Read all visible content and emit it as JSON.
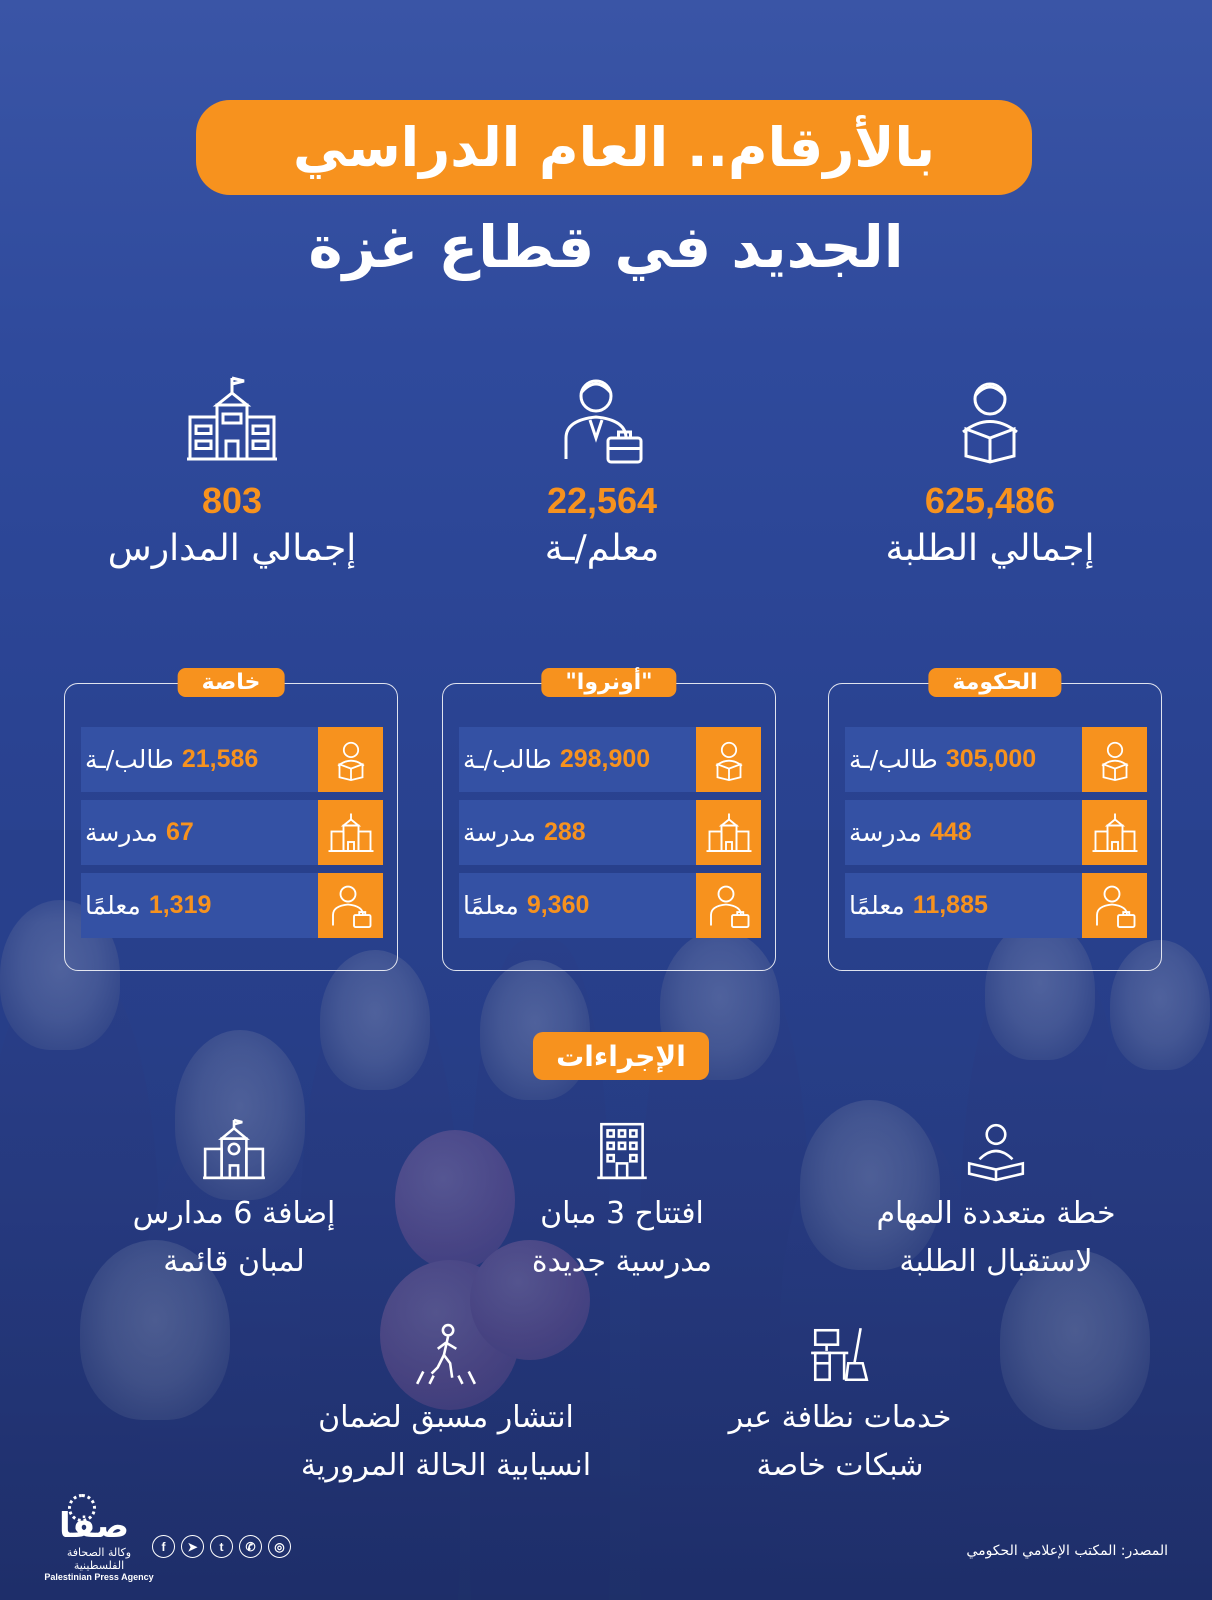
{
  "title": {
    "line1": "بالأرقام.. العام الدراسي",
    "line2": "الجديد في قطاع غزة"
  },
  "accent_color": "#f7921e",
  "totals": [
    {
      "icon": "student-reading-icon",
      "value": "625,486",
      "label": "إجمالي الطلبة"
    },
    {
      "icon": "teacher-briefcase-icon",
      "value": "22,564",
      "label": "معلم/ـة"
    },
    {
      "icon": "school-building-icon",
      "value": "803",
      "label": "إجمالي المدارس"
    }
  ],
  "panels": [
    {
      "tag": "الحكومة",
      "rows": [
        {
          "icon": "student-reading-icon",
          "value": "305,000",
          "label": "طالب/ـة"
        },
        {
          "icon": "school-building-icon",
          "value": "448",
          "label": "مدرسة"
        },
        {
          "icon": "teacher-briefcase-icon",
          "value": "11,885",
          "label": "معلمًا"
        }
      ]
    },
    {
      "tag": "\"أونروا\"",
      "rows": [
        {
          "icon": "student-reading-icon",
          "value": "298,900",
          "label": "طالب/ـة"
        },
        {
          "icon": "school-building-icon",
          "value": "288",
          "label": "مدرسة"
        },
        {
          "icon": "teacher-briefcase-icon",
          "value": "9,360",
          "label": "معلمًا"
        }
      ]
    },
    {
      "tag": "خاصة",
      "rows": [
        {
          "icon": "student-reading-icon",
          "value": "21,586",
          "label": "طالب/ـة"
        },
        {
          "icon": "school-building-icon",
          "value": "67",
          "label": "مدرسة"
        },
        {
          "icon": "teacher-briefcase-icon",
          "value": "1,319",
          "label": "معلمًا"
        }
      ]
    }
  ],
  "procedures": {
    "label": "الإجراءات",
    "items": [
      {
        "icon": "reader-book-icon",
        "line1": "خطة متعددة المهام",
        "line2": "لاستقبال الطلبة"
      },
      {
        "icon": "building-icon",
        "line1": "افتتاح 3 مبان",
        "line2": "مدرسية جديدة"
      },
      {
        "icon": "school-clock-icon",
        "line1": "إضافة 6 مدارس",
        "line2": "لمبان قائمة"
      },
      {
        "icon": "cleaning-desk-icon",
        "line1": "خدمات نظافة عبر",
        "line2": "شبكات خاصة"
      },
      {
        "icon": "pedestrian-crossing-icon",
        "line1": "انتشار مسبق لضمان",
        "line2": "انسيابية الحالة المرورية"
      }
    ]
  },
  "footer": {
    "logo_text": "صفا",
    "agency_ar": "وكالة الصحافة الفلسطينية",
    "agency_en": "Palestinian Press Agency",
    "social_icons": [
      "facebook-icon",
      "telegram-icon",
      "tumblr-icon",
      "whatsapp-icon",
      "instagram-icon"
    ],
    "source": "المصدر: المكتب الإعلامي الحكومي"
  }
}
